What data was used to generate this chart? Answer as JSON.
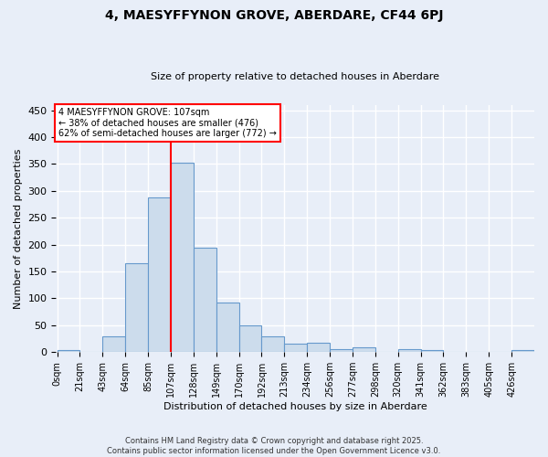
{
  "title": "4, MAESYFFYNON GROVE, ABERDARE, CF44 6PJ",
  "subtitle": "Size of property relative to detached houses in Aberdare",
  "xlabel": "Distribution of detached houses by size in Aberdare",
  "ylabel": "Number of detached properties",
  "bar_color": "#ccdcec",
  "bar_edge_color": "#6699cc",
  "background_color": "#e8eef8",
  "grid_color": "white",
  "red_line_index": 5,
  "annotation_line1": "4 MAESYFFYNON GROVE: 107sqm",
  "annotation_line2": "← 38% of detached houses are smaller (476)",
  "annotation_line3": "62% of semi-detached houses are larger (772) →",
  "annotation_box_color": "white",
  "annotation_box_edge_color": "red",
  "footer_text": "Contains HM Land Registry data © Crown copyright and database right 2025.\nContains public sector information licensed under the Open Government Licence v3.0.",
  "categories": [
    "0sqm",
    "21sqm",
    "43sqm",
    "64sqm",
    "85sqm",
    "107sqm",
    "128sqm",
    "149sqm",
    "170sqm",
    "192sqm",
    "213sqm",
    "234sqm",
    "256sqm",
    "277sqm",
    "298sqm",
    "320sqm",
    "341sqm",
    "362sqm",
    "383sqm",
    "405sqm",
    "426sqm"
  ],
  "values": [
    3,
    0,
    30,
    165,
    287,
    352,
    194,
    93,
    50,
    30,
    15,
    18,
    6,
    9,
    0,
    5,
    4,
    0,
    0,
    0,
    4
  ],
  "ylim": [
    0,
    460
  ],
  "bin_width": 21,
  "title_fontsize": 10,
  "subtitle_fontsize": 8,
  "tick_fontsize": 7,
  "ylabel_fontsize": 8,
  "xlabel_fontsize": 8
}
